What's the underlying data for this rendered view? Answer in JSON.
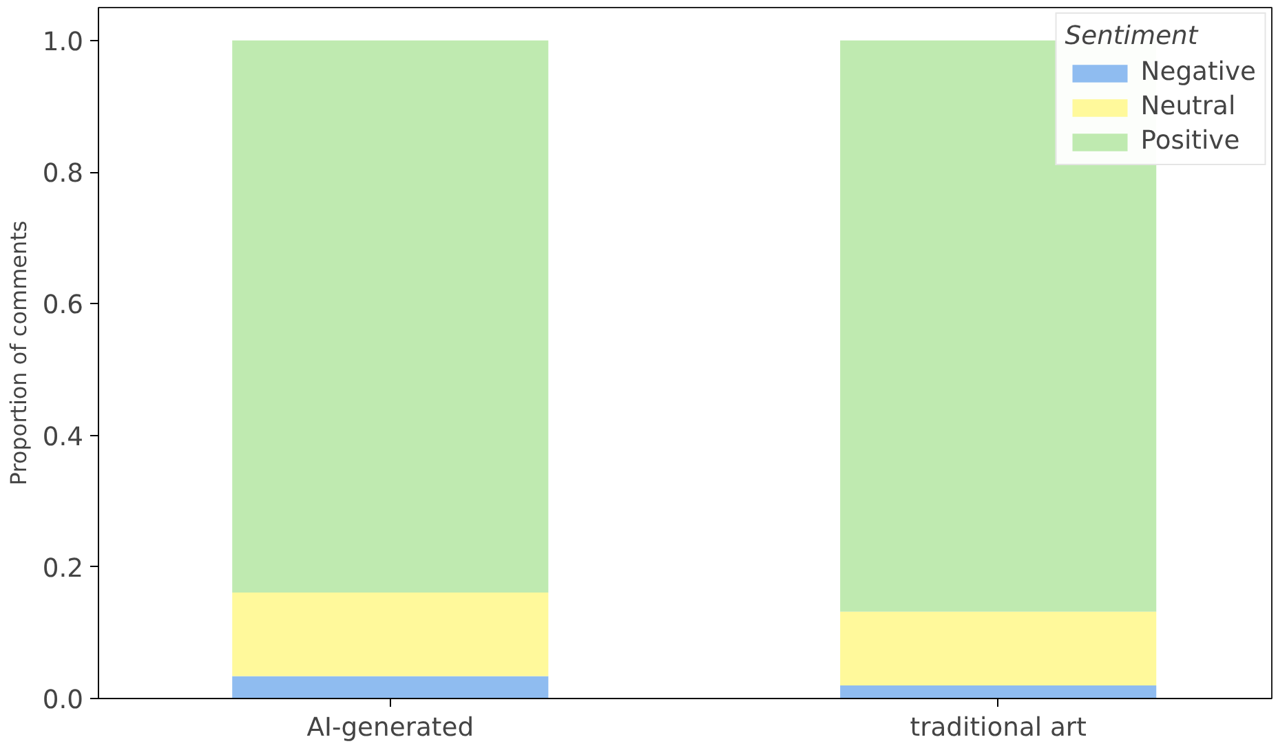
{
  "chart_data": {
    "type": "bar",
    "stacked": true,
    "ylabel": "Proportion of comments",
    "legend_title": "Sentiment",
    "legend": "top right",
    "grid": false,
    "categories": [
      "AI-generated",
      "traditional art"
    ],
    "series": [
      {
        "name": "Negative",
        "color": "#8fbcf0",
        "values": [
          0.034,
          0.02
        ]
      },
      {
        "name": "Neutral",
        "color": "#fff99b",
        "values": [
          0.127,
          0.112
        ]
      },
      {
        "name": "Positive",
        "color": "#bfeab0",
        "values": [
          0.839,
          0.868
        ]
      }
    ],
    "ylim": [
      0,
      1.05
    ],
    "yticks": [
      {
        "value": 0,
        "label": "0.0"
      },
      {
        "value": 0.2,
        "label": "0.2"
      },
      {
        "value": 0.4,
        "label": "0.4"
      },
      {
        "value": 0.6,
        "label": "0.6"
      },
      {
        "value": 0.8,
        "label": "0.8"
      },
      {
        "value": 1,
        "label": "1.0"
      }
    ]
  }
}
